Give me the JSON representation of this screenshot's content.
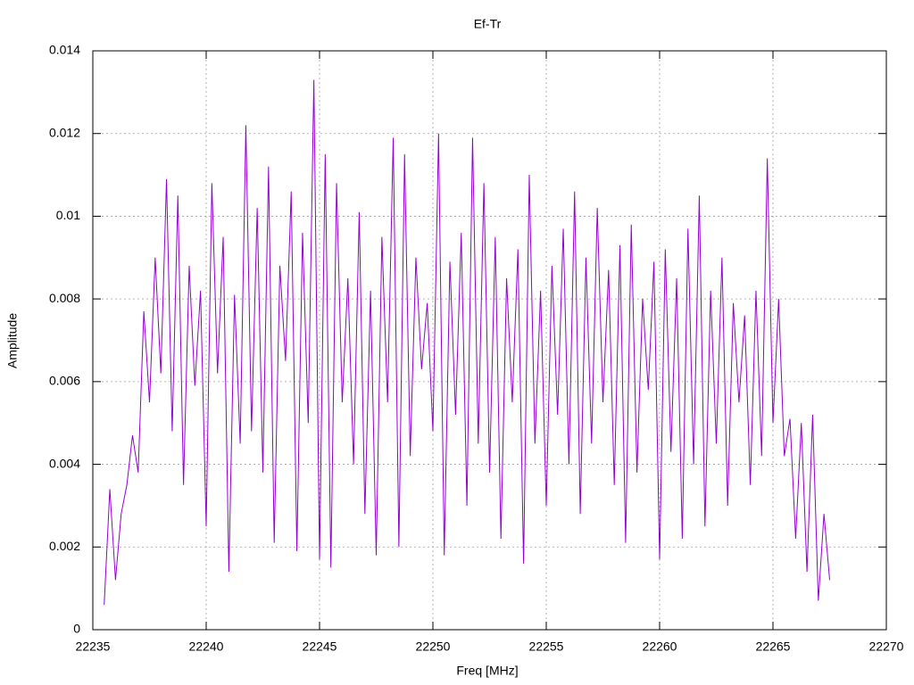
{
  "chart_data": {
    "type": "line",
    "title": "Ef-Tr",
    "xlabel": "Freq [MHz]",
    "ylabel": "Amplitude",
    "color": "#9400d3",
    "grid": true,
    "xlim": [
      22235,
      22270
    ],
    "xticks": [
      22235,
      22240,
      22245,
      22250,
      22255,
      22260,
      22265,
      22270
    ],
    "ylim": [
      0,
      0.014
    ],
    "yticks": [
      0,
      0.002,
      0.004,
      0.006,
      0.008,
      0.01,
      0.012,
      0.014
    ],
    "x": [
      22235.5,
      22235.75,
      22236,
      22236.25,
      22236.5,
      22236.75,
      22237,
      22237.25,
      22237.5,
      22237.75,
      22238,
      22238.25,
      22238.5,
      22238.75,
      22239,
      22239.25,
      22239.5,
      22239.75,
      22240,
      22240.25,
      22240.5,
      22240.75,
      22241,
      22241.25,
      22241.5,
      22241.75,
      22242,
      22242.25,
      22242.5,
      22242.75,
      22243,
      22243.25,
      22243.5,
      22243.75,
      22244,
      22244.25,
      22244.5,
      22244.75,
      22245,
      22245.25,
      22245.5,
      22245.75,
      22246,
      22246.25,
      22246.5,
      22246.75,
      22247,
      22247.25,
      22247.5,
      22247.75,
      22248,
      22248.25,
      22248.5,
      22248.75,
      22249,
      22249.25,
      22249.5,
      22249.75,
      22250,
      22250.25,
      22250.5,
      22250.75,
      22251,
      22251.25,
      22251.5,
      22251.75,
      22252,
      22252.25,
      22252.5,
      22252.75,
      22253,
      22253.25,
      22253.5,
      22253.75,
      22254,
      22254.25,
      22254.5,
      22254.75,
      22255,
      22255.25,
      22255.5,
      22255.75,
      22256,
      22256.25,
      22256.5,
      22256.75,
      22257,
      22257.25,
      22257.5,
      22257.75,
      22258,
      22258.25,
      22258.5,
      22258.75,
      22259,
      22259.25,
      22259.5,
      22259.75,
      22260,
      22260.25,
      22260.5,
      22260.75,
      22261,
      22261.25,
      22261.5,
      22261.75,
      22262,
      22262.25,
      22262.5,
      22262.75,
      22263,
      22263.25,
      22263.5,
      22263.75,
      22264,
      22264.25,
      22264.5,
      22264.75,
      22265,
      22265.25,
      22265.5,
      22265.75,
      22266,
      22266.25,
      22266.5,
      22266.75,
      22267,
      22267.25,
      22267.5
    ],
    "values": [
      0.0006,
      0.0034,
      0.0012,
      0.0028,
      0.0035,
      0.0047,
      0.0038,
      0.0077,
      0.0055,
      0.009,
      0.0062,
      0.0109,
      0.0048,
      0.0105,
      0.0035,
      0.0088,
      0.0059,
      0.0082,
      0.0025,
      0.0108,
      0.0062,
      0.0095,
      0.0014,
      0.0081,
      0.0045,
      0.0122,
      0.0048,
      0.0102,
      0.0038,
      0.0112,
      0.0021,
      0.0088,
      0.0065,
      0.0106,
      0.0019,
      0.0096,
      0.005,
      0.0133,
      0.0017,
      0.0115,
      0.0015,
      0.0108,
      0.0055,
      0.0085,
      0.004,
      0.0101,
      0.0028,
      0.0082,
      0.0018,
      0.0095,
      0.0055,
      0.0119,
      0.002,
      0.0115,
      0.0042,
      0.009,
      0.0063,
      0.0079,
      0.0048,
      0.012,
      0.0018,
      0.0089,
      0.0052,
      0.0096,
      0.003,
      0.0119,
      0.0045,
      0.0108,
      0.0038,
      0.0095,
      0.0022,
      0.0085,
      0.0055,
      0.0092,
      0.0016,
      0.011,
      0.0045,
      0.0082,
      0.003,
      0.0088,
      0.0052,
      0.0097,
      0.004,
      0.0106,
      0.0028,
      0.009,
      0.0045,
      0.0102,
      0.0055,
      0.0087,
      0.0035,
      0.0093,
      0.0021,
      0.0098,
      0.0038,
      0.008,
      0.0058,
      0.0089,
      0.0017,
      0.0092,
      0.0043,
      0.0085,
      0.0022,
      0.0097,
      0.004,
      0.0105,
      0.0025,
      0.0082,
      0.0045,
      0.009,
      0.003,
      0.0079,
      0.0055,
      0.0076,
      0.0035,
      0.0082,
      0.0042,
      0.0114,
      0.005,
      0.008,
      0.0042,
      0.0051,
      0.0022,
      0.005,
      0.0014,
      0.0052,
      0.0007,
      0.0028,
      0.0012
    ]
  }
}
